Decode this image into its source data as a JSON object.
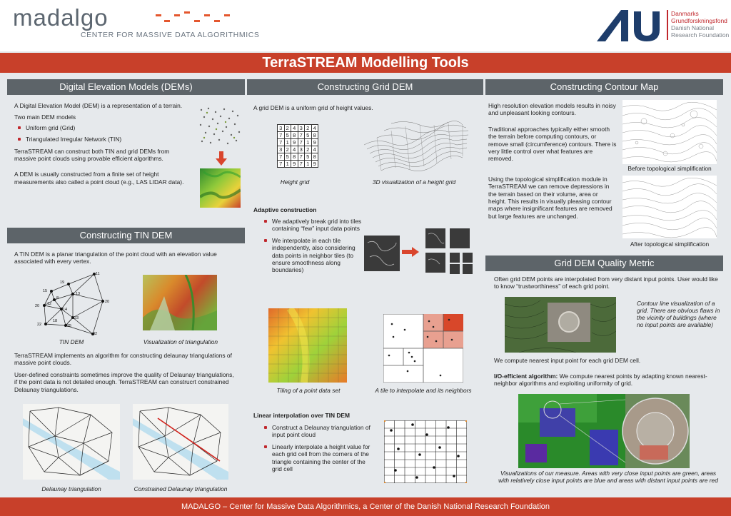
{
  "header": {
    "logo_word": "MADALGO",
    "logo_sub": "CENTER FOR MASSIVE DATA ALGORITHMICS",
    "dnrf_lines": [
      "Danmarks",
      "Grundforskningsfond",
      "Danish National",
      "Research Foundation"
    ]
  },
  "title": "TerraSTREAM Modelling Tools",
  "footer": "MADALGO – Center for Massive Data Algorithmics, a Center of the Danish National Research Foundation",
  "colors": {
    "accent": "#c8402a",
    "section_header": "#5d6469",
    "background": "#e6e9ec"
  },
  "dem": {
    "heading": "Digital Elevation Models (DEMs)",
    "p1": "A Digital Elevation Model (DEM) is a representation of a terrain.",
    "p2": "Two main DEM models",
    "bullets": [
      "Uniform grid (Grid)",
      "Triangulated Irregular Network (TIN)"
    ],
    "p3": "TerraSTREAM can construct both TIN and grid DEMs from massive point clouds using provable efficient algorithms.",
    "p4": "A DEM is usually constructed from a finite set of height measurements also called a point cloud (e.g., LAS LIDAR data)."
  },
  "tin": {
    "heading": "Constructing TIN DEM",
    "p1": "A TIN DEM is a planar triangulation of the point cloud with an elevation value associated with every vertex.",
    "cap_tin": "TIN DEM",
    "cap_vis": "Visualization of triangulation",
    "node_labels": [
      "11",
      "19",
      "15",
      "13",
      "8",
      "12",
      "20",
      "20",
      "14",
      "23",
      "22",
      "18",
      "25",
      "32"
    ],
    "p2": "TerraSTREAM implements an algorithm for constructing delaunay triangulations of massive point clouds.",
    "p3": "User-defined constraints sometimes improve the quality of Delaunay triangulations, if the point data is not detailed enough.  TerraSTREAM can construcrt constrained Delaunay triangulations.",
    "cap_delaunay": "Delaunay triangulation",
    "cap_constrained": "Constrained Delaunay triangulation"
  },
  "grid": {
    "heading": "Constructing Grid DEM",
    "p1": "A grid DEM is a uniform grid of height values.",
    "table": [
      [
        "3",
        "2",
        "4",
        "3",
        "2",
        "4"
      ],
      [
        "7",
        "5",
        "8",
        "7",
        "5",
        "8"
      ],
      [
        "7",
        "1",
        "9",
        "7",
        "1",
        "9"
      ],
      [
        "3",
        "2",
        "4",
        "3",
        "2",
        "4"
      ],
      [
        "7",
        "5",
        "8",
        "7",
        "5",
        "8"
      ],
      [
        "7",
        "1",
        "9",
        "7",
        "1",
        "9"
      ]
    ],
    "cap_height": "Height grid",
    "cap_3d": "3D visualization of a height grid",
    "adaptive_title": "Adaptive construction",
    "adaptive_bullets": [
      "We adaptively break grid into tiles containing “few” input data points",
      "We interpolate in each tile independently, also considering data points in neighbor tiles (to ensure smoothness along boundaries)"
    ],
    "cap_tiling": "Tiling of a point data set",
    "cap_tile": "A tile to interpolate and its neighbors",
    "linear_title": "Linear interpolation over TIN DEM",
    "linear_bullets": [
      "Construct a Delaunay triangulation of input point cloud",
      "Linearly interpolate a height value for each grid cell from the corners of the triangle containing the center of the grid cell"
    ]
  },
  "contour": {
    "heading": "Constructing Contour Map",
    "p1": "High resolution elevation models results in noisy and unpleasant looking contours.",
    "p2": "Traditional approaches typically either smooth the terrain before computing contours, or remove small (circumference) contours. There is very little control over what features are removed.",
    "p3": "Using the topological simplification module in TerraSTREAM we can remove depressions in the terrain based on their volume, area or height. This results in visually pleasing contour maps where insignificant features are removed but large features are unchanged.",
    "cap_before": "Before topological simplification",
    "cap_after": "After topological simplification"
  },
  "quality": {
    "heading": "Grid DEM Quality Metric",
    "p1": "Often grid DEM points are interpolated from very distant input points. User would like to know “trustworthiness” of each grid point.",
    "cap_contour": "Contour line visualization of a grid. There are obvious flaws in the vicinity of buildings (where no input points are available)",
    "p2": "We compute nearest input point for each grid DEM cell.",
    "p3_bold": "I/O-efficient algorithm:",
    "p3_rest": " We compute nearest points by adapting known nearest-neighbor algorithms and exploiting uniformity of grid.",
    "cap_measure": "Visualizations of our measure.  Areas with very close input points are green, areas with relatively close input points are blue and areas with distant input points are red"
  }
}
